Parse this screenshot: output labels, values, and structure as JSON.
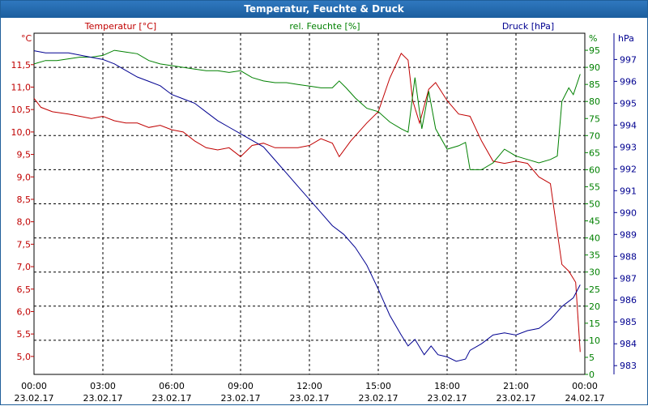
{
  "window": {
    "title": "Temperatur, Feuchte & Druck"
  },
  "chart_data": {
    "type": "line",
    "title": "Temperatur, Feuchte & Druck",
    "xlabel": "",
    "grid": true,
    "x_ticks": [
      {
        "time": "00:00",
        "date": "23.02.17"
      },
      {
        "time": "03:00",
        "date": "23.02.17"
      },
      {
        "time": "06:00",
        "date": "23.02.17"
      },
      {
        "time": "09:00",
        "date": "23.02.17"
      },
      {
        "time": "12:00",
        "date": "23.02.17"
      },
      {
        "time": "15:00",
        "date": "23.02.17"
      },
      {
        "time": "18:00",
        "date": "23.02.17"
      },
      {
        "time": "21:00",
        "date": "23.02.17"
      },
      {
        "time": "00:00",
        "date": "24.02.17"
      }
    ],
    "xlim_hours": [
      0,
      24
    ],
    "axes": {
      "temperature": {
        "unit": "°C",
        "color": "#c00000",
        "ticks": [
          "5,0",
          "5,5",
          "6,0",
          "6,5",
          "7,0",
          "7,5",
          "8,0",
          "8,5",
          "9,0",
          "9,5",
          "10,0",
          "10,5",
          "11,0",
          "11,5"
        ],
        "range": [
          4.6,
          12.2
        ]
      },
      "humidity": {
        "unit": "%",
        "color": "#008000",
        "ticks": [
          "0",
          "5",
          "10",
          "15",
          "20",
          "25",
          "30",
          "35",
          "40",
          "45",
          "50",
          "55",
          "60",
          "65",
          "70",
          "75",
          "80",
          "85",
          "90",
          "95"
        ],
        "range": [
          0,
          100
        ]
      },
      "pressure": {
        "unit": "hPa",
        "color": "#000090",
        "ticks": [
          "983",
          "984",
          "985",
          "986",
          "987",
          "988",
          "989",
          "990",
          "991",
          "992",
          "993",
          "994",
          "995",
          "996",
          "997"
        ],
        "range": [
          982.6,
          998.2
        ]
      }
    },
    "legend": [
      "Temperatur [°C]",
      "rel. Feuchte [%]",
      "Druck [hPa]"
    ],
    "series": [
      {
        "name": "Temperatur [°C]",
        "axis": "temperature",
        "color": "#c00000",
        "points": [
          [
            0,
            10.75
          ],
          [
            0.3,
            10.55
          ],
          [
            0.8,
            10.45
          ],
          [
            1.5,
            10.4
          ],
          [
            2,
            10.35
          ],
          [
            2.5,
            10.3
          ],
          [
            3,
            10.35
          ],
          [
            3.5,
            10.25
          ],
          [
            4,
            10.2
          ],
          [
            4.5,
            10.2
          ],
          [
            5,
            10.1
          ],
          [
            5.5,
            10.15
          ],
          [
            6,
            10.05
          ],
          [
            6.5,
            10.0
          ],
          [
            7,
            9.8
          ],
          [
            7.5,
            9.65
          ],
          [
            8,
            9.6
          ],
          [
            8.5,
            9.65
          ],
          [
            9,
            9.45
          ],
          [
            9.5,
            9.7
          ],
          [
            10,
            9.75
          ],
          [
            10.5,
            9.65
          ],
          [
            11,
            9.65
          ],
          [
            11.5,
            9.65
          ],
          [
            12,
            9.7
          ],
          [
            12.5,
            9.85
          ],
          [
            13,
            9.75
          ],
          [
            13.3,
            9.45
          ],
          [
            13.8,
            9.8
          ],
          [
            14.5,
            10.2
          ],
          [
            15,
            10.45
          ],
          [
            15.5,
            11.2
          ],
          [
            16,
            11.75
          ],
          [
            16.3,
            11.6
          ],
          [
            16.5,
            10.7
          ],
          [
            16.8,
            10.2
          ],
          [
            17.2,
            10.95
          ],
          [
            17.5,
            11.1
          ],
          [
            18,
            10.7
          ],
          [
            18.5,
            10.4
          ],
          [
            19,
            10.35
          ],
          [
            19.5,
            9.8
          ],
          [
            20,
            9.35
          ],
          [
            20.5,
            9.3
          ],
          [
            21,
            9.35
          ],
          [
            21.5,
            9.3
          ],
          [
            22,
            9.0
          ],
          [
            22.5,
            8.85
          ],
          [
            23,
            7.05
          ],
          [
            23.3,
            6.9
          ],
          [
            23.6,
            6.65
          ],
          [
            23.8,
            5.1
          ]
        ]
      },
      {
        "name": "rel. Feuchte [%]",
        "axis": "humidity",
        "color": "#008000",
        "points": [
          [
            0,
            91
          ],
          [
            0.5,
            92
          ],
          [
            1,
            92
          ],
          [
            1.5,
            92.5
          ],
          [
            2,
            93
          ],
          [
            2.5,
            93
          ],
          [
            3,
            93.5
          ],
          [
            3.5,
            95
          ],
          [
            4,
            94.5
          ],
          [
            4.5,
            94
          ],
          [
            5,
            92
          ],
          [
            5.5,
            91
          ],
          [
            6,
            90.5
          ],
          [
            6.5,
            90
          ],
          [
            7,
            89.5
          ],
          [
            7.5,
            89
          ],
          [
            8,
            89
          ],
          [
            8.5,
            88.5
          ],
          [
            9,
            89
          ],
          [
            9.5,
            87
          ],
          [
            10,
            86
          ],
          [
            10.5,
            85.5
          ],
          [
            11,
            85.5
          ],
          [
            11.5,
            85
          ],
          [
            12,
            84.5
          ],
          [
            12.5,
            84
          ],
          [
            13,
            84
          ],
          [
            13.3,
            86
          ],
          [
            13.6,
            84
          ],
          [
            14,
            81
          ],
          [
            14.5,
            78
          ],
          [
            15,
            77
          ],
          [
            15.5,
            74
          ],
          [
            16,
            72
          ],
          [
            16.3,
            71
          ],
          [
            16.6,
            87
          ],
          [
            16.9,
            72
          ],
          [
            17.2,
            83
          ],
          [
            17.5,
            72
          ],
          [
            18,
            66
          ],
          [
            18.5,
            67
          ],
          [
            18.8,
            68
          ],
          [
            19,
            60
          ],
          [
            19.5,
            60
          ],
          [
            20,
            62
          ],
          [
            20.5,
            66
          ],
          [
            21,
            64
          ],
          [
            21.5,
            63
          ],
          [
            22,
            62
          ],
          [
            22.5,
            63
          ],
          [
            22.8,
            64
          ],
          [
            23,
            80
          ],
          [
            23.3,
            84
          ],
          [
            23.5,
            82
          ],
          [
            23.8,
            88
          ]
        ]
      },
      {
        "name": "Druck [hPa]",
        "axis": "pressure",
        "color": "#000090",
        "points": [
          [
            0,
            997.4
          ],
          [
            0.5,
            997.3
          ],
          [
            1,
            997.3
          ],
          [
            1.5,
            997.3
          ],
          [
            2,
            997.2
          ],
          [
            2.5,
            997.1
          ],
          [
            3,
            997.0
          ],
          [
            3.5,
            996.8
          ],
          [
            4,
            996.5
          ],
          [
            4.5,
            996.2
          ],
          [
            5,
            996.0
          ],
          [
            5.5,
            995.8
          ],
          [
            6,
            995.4
          ],
          [
            6.5,
            995.2
          ],
          [
            7,
            995.0
          ],
          [
            7.5,
            994.6
          ],
          [
            8,
            994.2
          ],
          [
            8.5,
            993.9
          ],
          [
            9,
            993.6
          ],
          [
            9.5,
            993.3
          ],
          [
            10,
            993.0
          ],
          [
            10.5,
            992.4
          ],
          [
            11,
            991.8
          ],
          [
            11.5,
            991.2
          ],
          [
            12,
            990.6
          ],
          [
            12.5,
            990.0
          ],
          [
            13,
            989.4
          ],
          [
            13.5,
            989.0
          ],
          [
            14,
            988.4
          ],
          [
            14.5,
            987.6
          ],
          [
            15,
            986.5
          ],
          [
            15.5,
            985.3
          ],
          [
            16,
            984.4
          ],
          [
            16.3,
            983.9
          ],
          [
            16.6,
            984.2
          ],
          [
            17,
            983.5
          ],
          [
            17.3,
            983.9
          ],
          [
            17.6,
            983.5
          ],
          [
            18,
            983.4
          ],
          [
            18.4,
            983.2
          ],
          [
            18.8,
            983.3
          ],
          [
            19,
            983.7
          ],
          [
            19.5,
            984.0
          ],
          [
            20,
            984.4
          ],
          [
            20.5,
            984.5
          ],
          [
            21,
            984.4
          ],
          [
            21.5,
            984.6
          ],
          [
            22,
            984.7
          ],
          [
            22.5,
            985.1
          ],
          [
            23,
            985.7
          ],
          [
            23.5,
            986.1
          ],
          [
            23.8,
            986.7
          ]
        ]
      }
    ]
  }
}
